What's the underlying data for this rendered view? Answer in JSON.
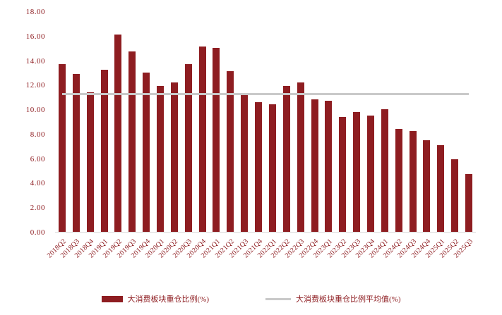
{
  "chart_data": {
    "type": "bar",
    "title": "",
    "xlabel": "",
    "ylabel": "",
    "categories": [
      "2018Q2",
      "2018Q3",
      "2018Q4",
      "2019Q1",
      "2019Q2",
      "2019Q3",
      "2019Q4",
      "2020Q1",
      "2020Q2",
      "2020Q3",
      "2020Q4",
      "2021Q1",
      "2021Q2",
      "2021Q3",
      "2021Q4",
      "2022Q1",
      "2022Q2",
      "2022Q3",
      "2022Q4",
      "2023Q1",
      "2023Q2",
      "2023Q3",
      "2023Q4",
      "2024Q1",
      "2024Q2",
      "2024Q3",
      "2024Q4",
      "2025Q1",
      "2025Q2",
      "2025Q3"
    ],
    "series": [
      {
        "name": "大消费板块重仓比例(%)",
        "values": [
          13.7,
          12.9,
          11.4,
          13.2,
          16.1,
          14.7,
          13.0,
          11.9,
          12.2,
          13.7,
          15.1,
          15.0,
          13.1,
          11.2,
          10.6,
          10.4,
          11.9,
          12.2,
          10.8,
          10.7,
          9.4,
          9.8,
          9.5,
          10.0,
          8.4,
          8.2,
          7.5,
          7.1,
          5.9,
          4.7
        ]
      }
    ],
    "average_line": {
      "name": "大消费板块重仓比例平均值(%)",
      "value": 11.2
    },
    "ylim": [
      0,
      18
    ],
    "ytick_step": 2,
    "ytick_labels": [
      "0.00",
      "2.00",
      "4.00",
      "6.00",
      "8.00",
      "10.00",
      "12.00",
      "14.00",
      "16.00",
      "18.00"
    ],
    "grid": "off",
    "legend_position": "bottom",
    "colors": {
      "bar": "#8e1d21",
      "avg_line": "#c9c9c9",
      "text": "#8e1d21"
    }
  },
  "legend": {
    "bar_label": "大消费板块重仓比例(%)",
    "line_label": "大消费板块重仓比例平均值(%)"
  }
}
